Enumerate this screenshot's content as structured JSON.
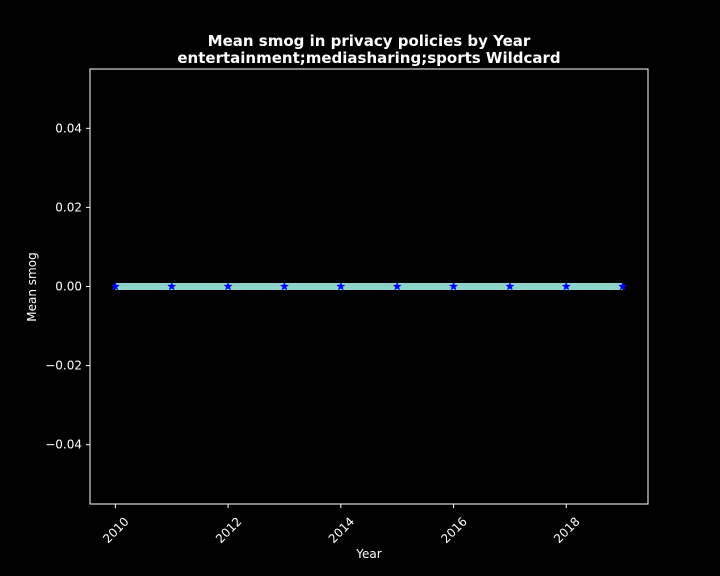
{
  "chart_data": {
    "type": "line",
    "title": "Mean smog in privacy policies by Year",
    "subtitle": "entertainment;mediasharing;sports Wildcard",
    "xlabel": "Year",
    "ylabel": "Mean smog",
    "x": [
      2010,
      2011,
      2012,
      2013,
      2014,
      2015,
      2016,
      2017,
      2018,
      2019
    ],
    "series": [
      {
        "values": [
          0,
          0,
          0,
          0,
          0,
          0,
          0,
          0,
          0,
          0
        ]
      }
    ],
    "xlim": [
      2009.55,
      2019.45
    ],
    "ylim": [
      -0.055,
      0.055
    ],
    "x_ticks": [
      2010,
      2012,
      2014,
      2016,
      2018
    ],
    "x_tick_labels": [
      "2010",
      "2012",
      "2014",
      "2016",
      "2018"
    ],
    "y_ticks": [
      -0.04,
      -0.02,
      0,
      0.02,
      0.04
    ],
    "y_tick_labels": [
      "−0.04",
      "−0.02",
      "0.00",
      "0.02",
      "0.04"
    ],
    "grid": false,
    "legend": "none",
    "colors": {
      "background": "#000000",
      "axes": "#ffffff",
      "line": "#8dd3c7",
      "marker": "#0000ff"
    },
    "marker": "star"
  }
}
